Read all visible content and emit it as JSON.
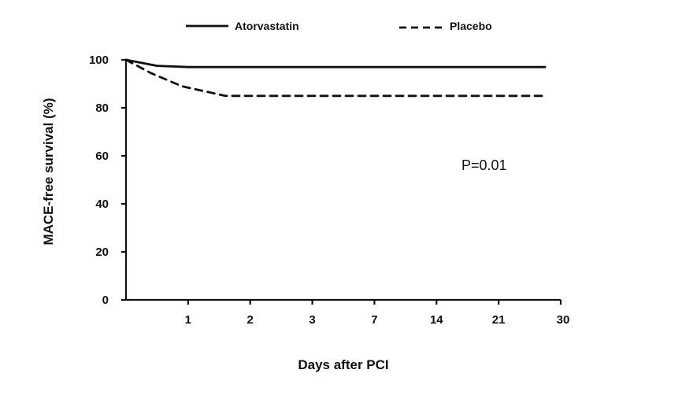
{
  "chart_data": {
    "type": "line",
    "title": "",
    "xlabel": "Days after PCI",
    "ylabel": "MACE-free survival  (%)",
    "categories": [
      "",
      "1",
      "2",
      "3",
      "7",
      "14",
      "21",
      "30"
    ],
    "ylim": [
      0,
      100
    ],
    "yticks": [
      0,
      20,
      40,
      60,
      80,
      100
    ],
    "grid": false,
    "legend_position": "top",
    "annotation": "P=0.01",
    "series": [
      {
        "name": "Atorvastatin",
        "style": "solid",
        "color": "#111111",
        "points": [
          [
            0,
            100
          ],
          [
            0.5,
            97.5
          ],
          [
            1,
            97
          ],
          [
            2,
            97
          ],
          [
            3,
            97
          ],
          [
            4,
            97
          ],
          [
            5,
            97
          ],
          [
            6,
            97
          ],
          [
            7,
            97
          ]
        ]
      },
      {
        "name": "Placebo",
        "style": "dashed",
        "color": "#111111",
        "points": [
          [
            0,
            100
          ],
          [
            0.4,
            94.5
          ],
          [
            0.9,
            89
          ],
          [
            1.6,
            85
          ],
          [
            2,
            85
          ],
          [
            3,
            85
          ],
          [
            4,
            85
          ],
          [
            5,
            85
          ],
          [
            6,
            85
          ],
          [
            7,
            85
          ]
        ]
      }
    ]
  }
}
